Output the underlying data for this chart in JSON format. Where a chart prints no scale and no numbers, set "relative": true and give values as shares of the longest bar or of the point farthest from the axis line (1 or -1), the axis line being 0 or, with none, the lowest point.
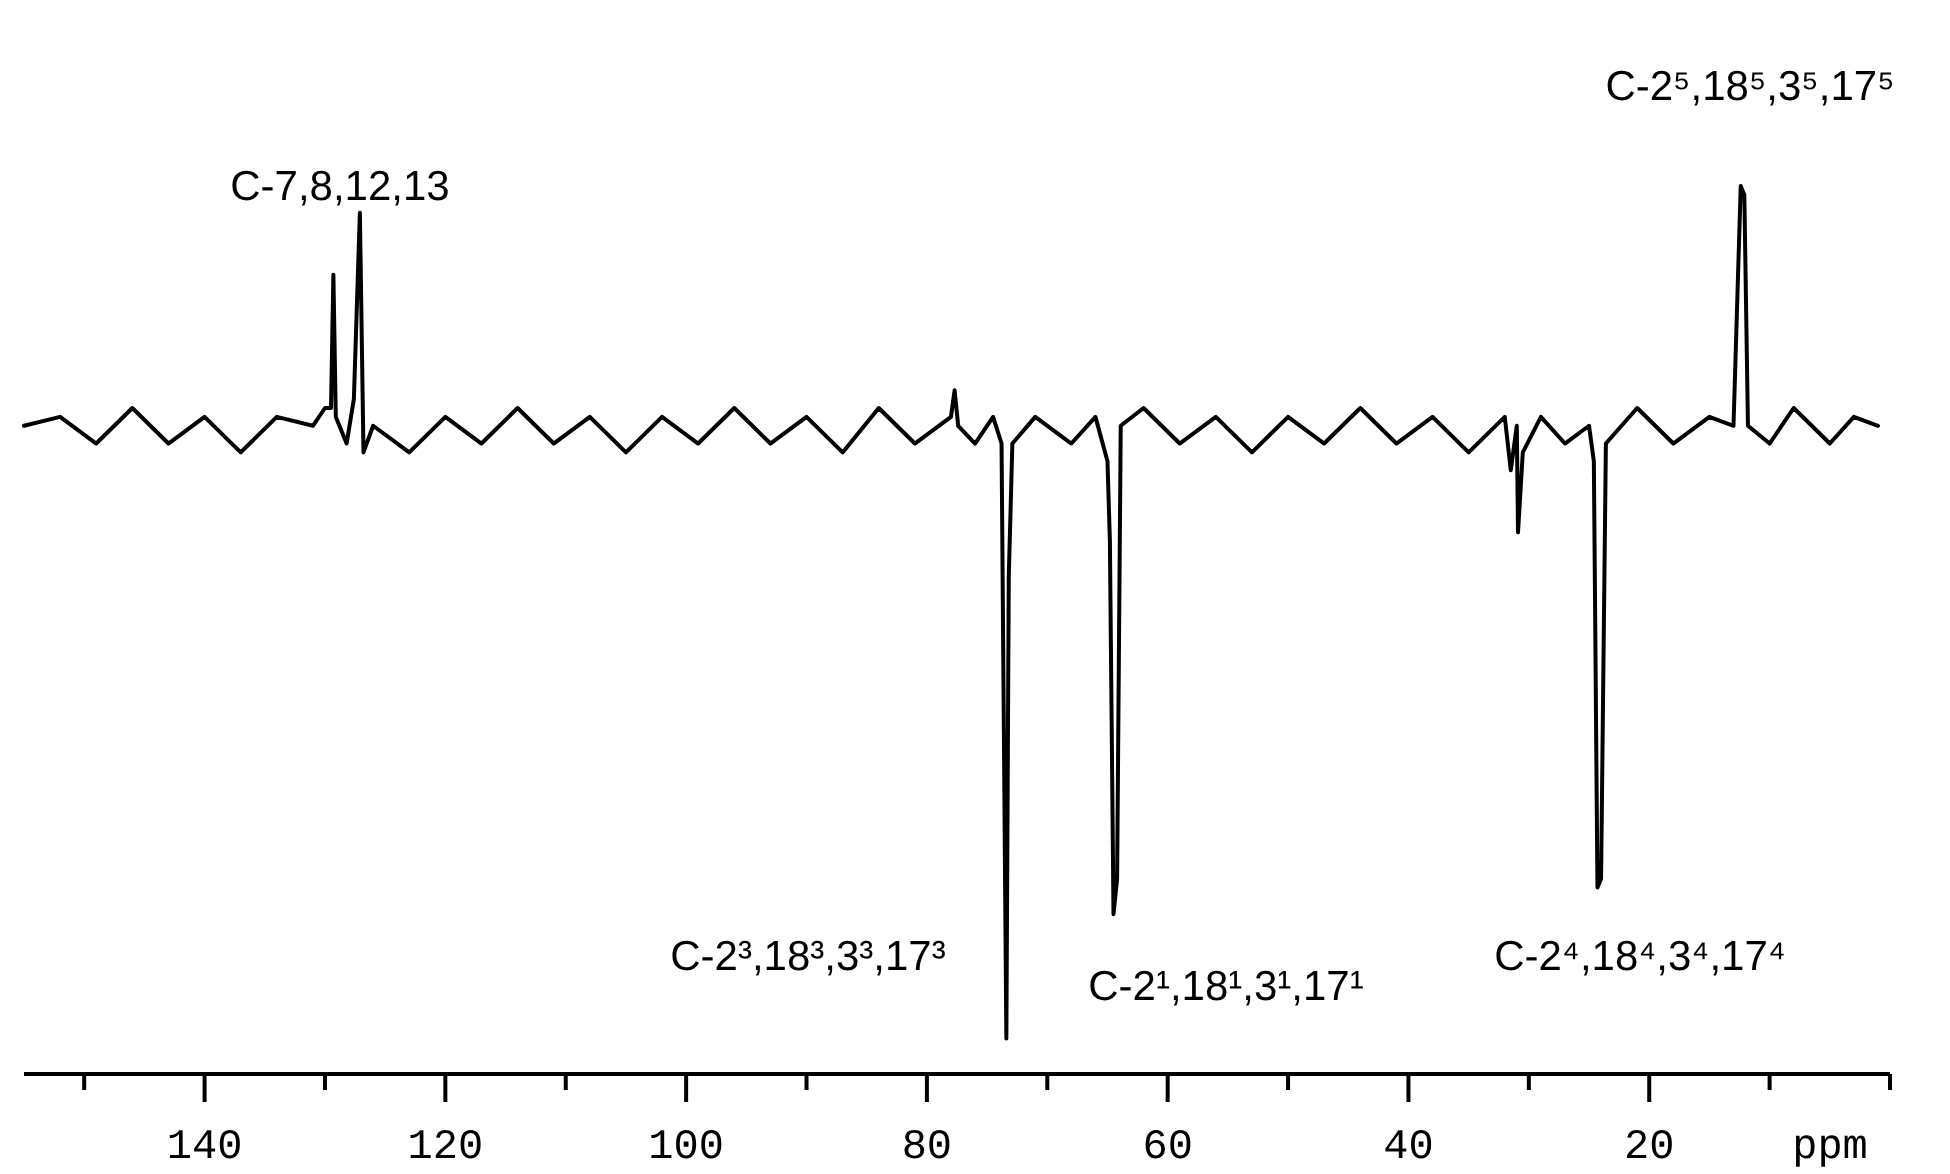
{
  "chart_data": {
    "type": "line",
    "relative": true,
    "xlabel": "ppm",
    "xlim": [
      155,
      0
    ],
    "xticks": [
      {
        "value": 150,
        "label": null
      },
      140,
      {
        "value": 130,
        "label": null
      },
      120,
      {
        "value": 110,
        "label": null
      },
      100,
      {
        "value": 90,
        "label": null
      },
      80,
      {
        "value": 70,
        "label": null
      },
      60,
      {
        "value": 50,
        "label": null
      },
      40,
      {
        "value": 30,
        "label": null
      },
      20,
      {
        "value": 10,
        "label": null
      },
      {
        "value": 0,
        "label": null
      }
    ],
    "series": [
      {
        "color": "#000000",
        "x": [
          155,
          152,
          149,
          146,
          143,
          140,
          137,
          134,
          131,
          130,
          129.5,
          129.3,
          129.1,
          128.2,
          127.6,
          127.1,
          126.8,
          126,
          123,
          120,
          117,
          114,
          111,
          108,
          105,
          102,
          99,
          96,
          93,
          90,
          87,
          84,
          81,
          78,
          77.7,
          77.4,
          76,
          74.5,
          73.8,
          73.4,
          73.2,
          72.9,
          71,
          68,
          66,
          65,
          64.8,
          64.5,
          64.2,
          63.9,
          62,
          59,
          56,
          53,
          50,
          47,
          44,
          41,
          38,
          35,
          32,
          31.5,
          31,
          30.9,
          30.5,
          29,
          27,
          25,
          24.6,
          24.3,
          24,
          23.6,
          21,
          18,
          15,
          13,
          12.4,
          12.1,
          11.8,
          10,
          8,
          5,
          3,
          1
        ],
        "values": [
          0.73,
          0.74,
          0.71,
          0.75,
          0.71,
          0.74,
          0.7,
          0.74,
          0.73,
          0.75,
          0.75,
          0.9,
          0.74,
          0.71,
          0.76,
          0.97,
          0.7,
          0.73,
          0.7,
          0.74,
          0.71,
          0.75,
          0.71,
          0.74,
          0.7,
          0.74,
          0.71,
          0.75,
          0.71,
          0.74,
          0.7,
          0.75,
          0.71,
          0.74,
          0.77,
          0.73,
          0.71,
          0.74,
          0.71,
          0.04,
          0.56,
          0.71,
          0.74,
          0.71,
          0.74,
          0.69,
          0.6,
          0.18,
          0.22,
          0.73,
          0.75,
          0.71,
          0.74,
          0.7,
          0.74,
          0.71,
          0.75,
          0.71,
          0.74,
          0.7,
          0.74,
          0.68,
          0.73,
          0.61,
          0.7,
          0.74,
          0.71,
          0.73,
          0.69,
          0.21,
          0.22,
          0.71,
          0.75,
          0.71,
          0.74,
          0.73,
          1,
          0.99,
          0.73,
          0.71,
          0.75,
          0.71,
          0.74,
          0.73
        ]
      }
    ],
    "annotations": [
      "C-7,8,12,13",
      "C-2⁵,18⁵,3⁵,17⁵",
      "C-2³,18³,3³,17³",
      "C-2¹,18¹,3¹,17¹",
      "C-2⁴,18⁴,3⁴,17⁴"
    ]
  }
}
